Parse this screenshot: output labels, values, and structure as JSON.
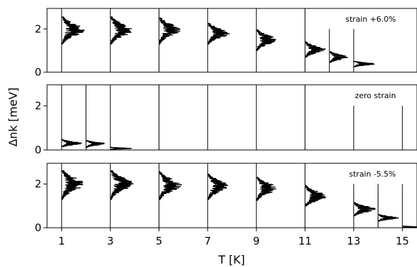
{
  "chart_data": {
    "type": "violin",
    "xlabel": "T [K]",
    "ylabel": "Δnk [meV]",
    "xlim": [
      0.4,
      15.6
    ],
    "x_ticks": [
      1,
      3,
      5,
      7,
      9,
      11,
      13,
      15
    ],
    "y_ticks": [
      0,
      2
    ],
    "panels": [
      {
        "annotation": "strain +6.0%",
        "ylim": [
          0,
          2.95
        ],
        "distributions": [
          {
            "T": 1,
            "center": 1.95,
            "low": 1.3,
            "high": 2.55,
            "width": 0.95
          },
          {
            "T": 3,
            "center": 1.95,
            "low": 1.3,
            "high": 2.55,
            "width": 0.95
          },
          {
            "T": 5,
            "center": 1.95,
            "low": 1.3,
            "high": 2.5,
            "width": 0.9
          },
          {
            "T": 7,
            "center": 1.8,
            "low": 1.3,
            "high": 2.25,
            "width": 0.9
          },
          {
            "T": 9,
            "center": 1.5,
            "low": 1.0,
            "high": 1.95,
            "width": 0.85
          },
          {
            "T": 11,
            "center": 1.05,
            "low": 0.7,
            "high": 1.4,
            "width": 0.85
          },
          {
            "T": 12,
            "center": 0.7,
            "low": 0.45,
            "high": 0.95,
            "width": 0.8
          },
          {
            "T": 13,
            "center": 0.38,
            "low": 0.25,
            "high": 0.5,
            "width": 0.95
          }
        ]
      },
      {
        "annotation": "zero strain",
        "ylim": [
          0,
          2.95
        ],
        "distributions": [
          {
            "T": 1,
            "center": 0.3,
            "low": 0.15,
            "high": 0.48,
            "width": 0.85
          },
          {
            "T": 2,
            "center": 0.28,
            "low": 0.12,
            "high": 0.42,
            "width": 0.85
          },
          {
            "T": 3,
            "center": 0.07,
            "low": 0.02,
            "high": 0.12,
            "width": 0.95
          }
        ],
        "extra_separators": [
          5,
          7,
          9,
          11,
          13,
          15
        ],
        "short_separators": [
          13,
          15
        ]
      },
      {
        "annotation": "strain -5.5%",
        "ylim": [
          0,
          2.95
        ],
        "distributions": [
          {
            "T": 1,
            "center": 2.0,
            "low": 1.3,
            "high": 2.6,
            "width": 0.95
          },
          {
            "T": 3,
            "center": 2.0,
            "low": 1.3,
            "high": 2.6,
            "width": 0.95
          },
          {
            "T": 5,
            "center": 1.95,
            "low": 1.3,
            "high": 2.55,
            "width": 0.95
          },
          {
            "T": 7,
            "center": 1.9,
            "low": 1.3,
            "high": 2.45,
            "width": 0.9
          },
          {
            "T": 9,
            "center": 1.8,
            "low": 1.25,
            "high": 2.3,
            "width": 0.9
          },
          {
            "T": 11,
            "center": 1.45,
            "low": 1.0,
            "high": 1.95,
            "width": 0.9
          },
          {
            "T": 13,
            "center": 0.85,
            "low": 0.55,
            "high": 1.15,
            "width": 0.9
          },
          {
            "T": 14,
            "center": 0.45,
            "low": 0.3,
            "high": 0.6,
            "width": 0.9
          },
          {
            "T": 15,
            "center": 0.04,
            "low": 0.0,
            "high": 0.08,
            "width": 0.6
          }
        ],
        "extra_separators": [],
        "short_separators": []
      }
    ]
  }
}
